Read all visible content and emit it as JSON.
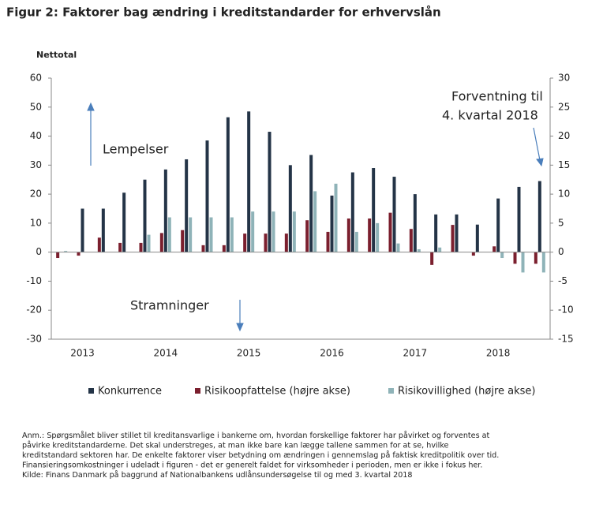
{
  "chart_data": {
    "type": "bar",
    "title": "Figur 2: Faktorer bag ændring i kreditstandarder for erhvervslån",
    "y_label": "Nettotal",
    "categories": [
      null,
      "2013",
      null,
      null,
      null,
      "2014",
      null,
      null,
      null,
      "2015",
      null,
      null,
      null,
      "2016",
      null,
      null,
      null,
      "2017",
      null,
      null,
      null,
      "2018",
      null,
      null
    ],
    "series": [
      {
        "name": "Konkurrence",
        "color": "#243447",
        "axis": "y",
        "values": [
          0,
          15,
          15,
          20.5,
          25,
          28.5,
          32,
          38.5,
          46.5,
          48.5,
          41.5,
          30,
          33.5,
          19.5,
          27.5,
          29,
          26,
          20,
          13,
          13,
          9.5,
          18.5,
          22.5,
          24.5
        ]
      },
      {
        "name": "Risikoopfattelse (højre akse)",
        "color": "#7b1f2e",
        "axis": "y2",
        "values": [
          -1,
          -0.6,
          2.5,
          1.6,
          1.6,
          3.3,
          3.8,
          1.2,
          1.2,
          3.2,
          3.2,
          3.2,
          5.5,
          3.5,
          5.8,
          5.8,
          6.8,
          4,
          -2.2,
          4.7,
          -0.6,
          1,
          -2,
          -2
        ]
      },
      {
        "name": "Risikovillighed (højre akse)",
        "color": "#8fb3b8",
        "axis": "y2",
        "values": [
          0.2,
          0,
          0,
          0,
          3,
          6,
          6,
          6,
          6,
          7,
          7,
          7,
          10.5,
          11.8,
          3.5,
          5,
          1.5,
          0.5,
          0.8,
          0,
          0,
          -1,
          -3.5,
          -3.5
        ]
      }
    ],
    "ylim": [
      -30,
      60
    ],
    "yticks": [
      -30,
      -20,
      -10,
      0,
      10,
      20,
      30,
      40,
      50,
      60
    ],
    "y2lim": [
      -15,
      30
    ],
    "y2ticks": [
      -15,
      -10,
      -5,
      0,
      5,
      10,
      15,
      20,
      25,
      30
    ],
    "annotations": [
      "Lempelser",
      "Stramninger",
      "Forventning til",
      "4. kvartal 2018"
    ],
    "note": [
      "Anm.:  Spørgsmålet bliver stillet til kreditansvarlige i bankerne om, hvordan forskellige faktorer har påvirket og forventes at",
      "påvirke kreditstandarderne. Det skal understreges, at man ikke bare kan lægge tallene sammen for at se, hvilke",
      "kreditstandard sektoren har. De enkelte faktorer viser betydning om ændringen i gennemslag på faktisk kreditpolitik over tid.",
      "Finansieringsomkostninger i udeladt i figuren - det er generelt faldet for virksomheder i perioden, men er ikke i fokus her.",
      "Kilde: Finans Danmark på baggrund af Nationalbankens udlånsundersøgelse til og med 3. kvartal 2018"
    ]
  }
}
